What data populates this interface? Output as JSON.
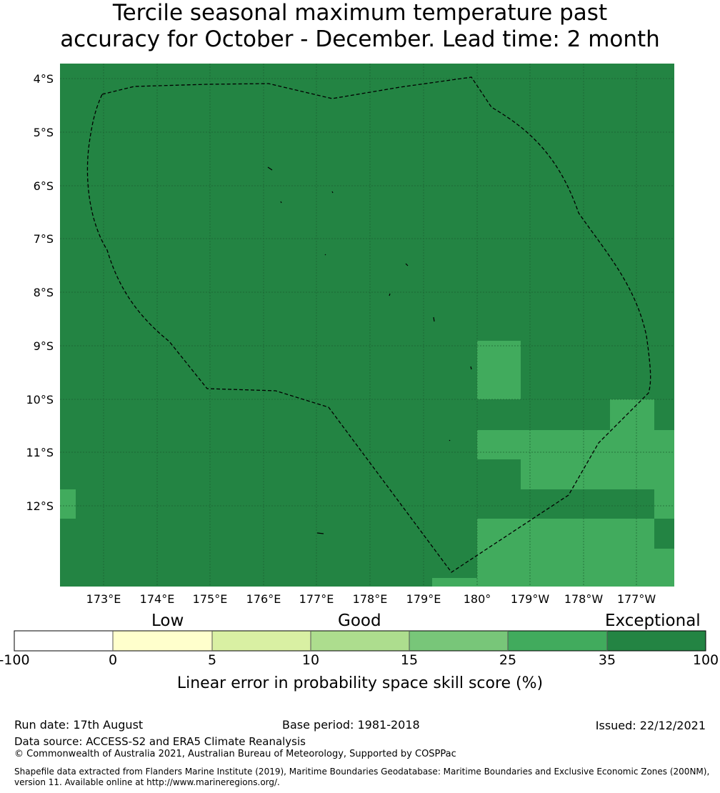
{
  "title": {
    "line1": "Tercile seasonal maximum temperature past",
    "line2": "accuracy for October - December. Lead time: 2 month"
  },
  "map": {
    "lat_labels": [
      "4°S",
      "5°S",
      "6°S",
      "7°S",
      "8°S",
      "9°S",
      "10°S",
      "11°S",
      "12°S"
    ],
    "lon_labels": [
      "173°E",
      "174°E",
      "175°E",
      "176°E",
      "177°E",
      "178°E",
      "179°E",
      "180°",
      "179°W",
      "178°W",
      "177°W"
    ],
    "lat_range": [
      3.75,
      13.55
    ],
    "lon_range": [
      172.2,
      183.7
    ],
    "colors": {
      "exceptional": "#238443",
      "very_good": "#41ab5d",
      "grid": "#1b5e30",
      "boundary": "#000000"
    },
    "lighter_cells_note": "skill 25-35%"
  },
  "colorbar": {
    "words": {
      "low": "Low",
      "good": "Good",
      "exceptional": "Exceptional"
    },
    "ticks": [
      "-100",
      "0",
      "5",
      "10",
      "15",
      "25",
      "35",
      "100"
    ],
    "colors": [
      "#ffffff",
      "#ffffcc",
      "#d9f0a3",
      "#addd8e",
      "#78c679",
      "#41ab5d",
      "#238443"
    ],
    "label": "Linear error in probability space skill score (%)"
  },
  "footer": {
    "run_date": "Run date: 17th August",
    "base_period": "Base period: 1981-2018",
    "issued": "Issued: 22/12/2021",
    "data_source": "Data source: ACCESS-S2 and ERA5 Climate Reanalysis",
    "copyright": "© Commonwealth of Australia 2021, Australian Bureau of Meteorology, Supported by COSPPac",
    "shapefile_line1": "Shapefile data extracted from Flanders Marine Institute (2019), Maritime Boundaries Geodatabase: Maritime Boundaries and Exclusive Economic Zones (200NM),",
    "shapefile_line2": "version 11. Available online at http://www.marineregions.org/."
  }
}
